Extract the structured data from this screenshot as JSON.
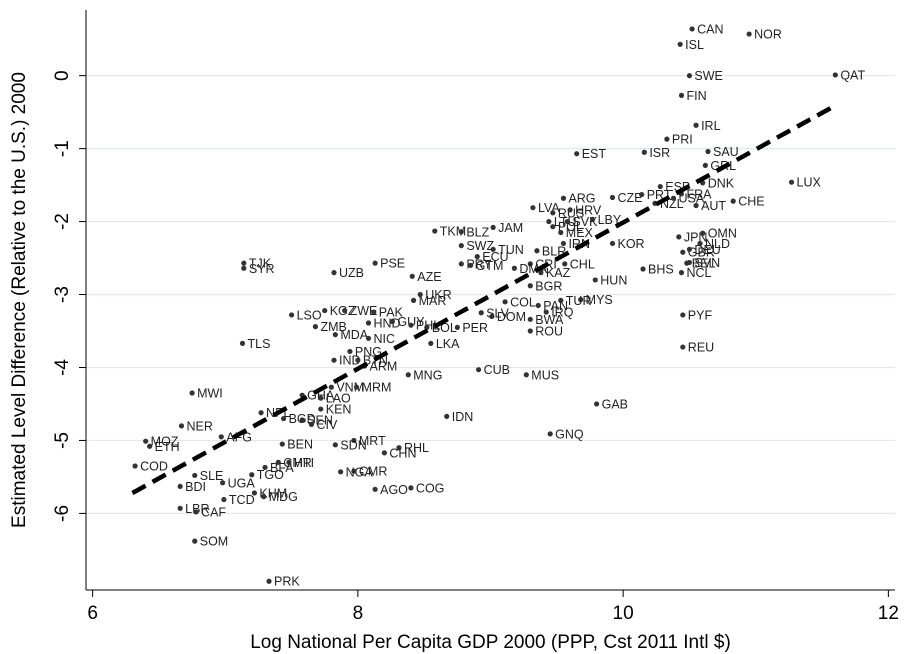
{
  "chart_data": {
    "type": "scatter",
    "title": "",
    "xlabel": "Log National Per Capita GDP 2000 (PPP, Cst 2011 Intl $)",
    "ylabel": "Estimated Level Difference (Relative to the U.S.) 2000",
    "xlim": [
      5.95,
      12.05
    ],
    "ylim": [
      -7.05,
      0.9
    ],
    "xticks": [
      6,
      8,
      10,
      12
    ],
    "yticks": [
      0,
      -1,
      -2,
      -3,
      -4,
      -5,
      -6
    ],
    "grid": "horizontal",
    "legend": "none",
    "colors": {
      "points": "#333333",
      "fit_line": "#000000",
      "grid": "#dfeaf0",
      "axis": "#000000"
    },
    "fit_line": {
      "style": "dashed",
      "x": [
        6.3,
        11.6
      ],
      "y": [
        -5.72,
        -0.41
      ]
    },
    "points": [
      {
        "label": "CAN",
        "x": 10.52,
        "y": 0.64
      },
      {
        "label": "NOR",
        "x": 10.95,
        "y": 0.57
      },
      {
        "label": "ISL",
        "x": 10.43,
        "y": 0.43
      },
      {
        "label": "SWE",
        "x": 10.5,
        "y": 0.0
      },
      {
        "label": "QAT",
        "x": 11.6,
        "y": 0.01
      },
      {
        "label": "FIN",
        "x": 10.44,
        "y": -0.27
      },
      {
        "label": "IRL",
        "x": 10.55,
        "y": -0.68
      },
      {
        "label": "PRI",
        "x": 10.33,
        "y": -0.87
      },
      {
        "label": "EST",
        "x": 9.65,
        "y": -1.07
      },
      {
        "label": "ISR",
        "x": 10.16,
        "y": -1.05
      },
      {
        "label": "SAU",
        "x": 10.64,
        "y": -1.04
      },
      {
        "label": "GRL",
        "x": 10.62,
        "y": -1.23
      },
      {
        "label": "DNK",
        "x": 10.6,
        "y": -1.47
      },
      {
        "label": "LUX",
        "x": 11.27,
        "y": -1.46
      },
      {
        "label": "ESP",
        "x": 10.28,
        "y": -1.52
      },
      {
        "label": "FRA",
        "x": 10.44,
        "y": -1.62
      },
      {
        "label": "CHE",
        "x": 10.83,
        "y": -1.72
      },
      {
        "label": "AUT",
        "x": 10.55,
        "y": -1.78
      },
      {
        "label": "ARG",
        "x": 9.55,
        "y": -1.68
      },
      {
        "label": "CZE",
        "x": 9.92,
        "y": -1.67
      },
      {
        "label": "PRT",
        "x": 10.14,
        "y": -1.63
      },
      {
        "label": "NZL",
        "x": 10.24,
        "y": -1.75
      },
      {
        "label": "USA",
        "x": 10.38,
        "y": -1.68
      },
      {
        "label": "LVA",
        "x": 9.32,
        "y": -1.81
      },
      {
        "label": "RUS",
        "x": 9.47,
        "y": -1.88
      },
      {
        "label": "HRV",
        "x": 9.6,
        "y": -1.84
      },
      {
        "label": "LTU",
        "x": 9.44,
        "y": -2.0
      },
      {
        "label": "SVK",
        "x": 9.58,
        "y": -2.0
      },
      {
        "label": "POL",
        "x": 9.47,
        "y": -2.07
      },
      {
        "label": "LBY",
        "x": 9.77,
        "y": -1.97
      },
      {
        "label": "TKM",
        "x": 8.58,
        "y": -2.13
      },
      {
        "label": "BLZ",
        "x": 8.78,
        "y": -2.14
      },
      {
        "label": "JAM",
        "x": 9.02,
        "y": -2.08
      },
      {
        "label": "MEX",
        "x": 9.53,
        "y": -2.15
      },
      {
        "label": "IRN",
        "x": 9.55,
        "y": -2.3
      },
      {
        "label": "KOR",
        "x": 9.92,
        "y": -2.3
      },
      {
        "label": "JPN",
        "x": 10.42,
        "y": -2.21
      },
      {
        "label": "OMN",
        "x": 10.6,
        "y": -2.16
      },
      {
        "label": "NLD",
        "x": 10.58,
        "y": -2.3
      },
      {
        "label": "GBR",
        "x": 10.45,
        "y": -2.42
      },
      {
        "label": "DEU",
        "x": 10.5,
        "y": -2.38
      },
      {
        "label": "BEL",
        "x": 10.48,
        "y": -2.57
      },
      {
        "label": "SVN",
        "x": 10.5,
        "y": -2.56
      },
      {
        "label": "NCL",
        "x": 10.44,
        "y": -2.7
      },
      {
        "label": "BHS",
        "x": 10.15,
        "y": -2.65
      },
      {
        "label": "TJK",
        "x": 7.14,
        "y": -2.57
      },
      {
        "label": "SYR",
        "x": 7.14,
        "y": -2.64
      },
      {
        "label": "PSE",
        "x": 8.13,
        "y": -2.57
      },
      {
        "label": "UZB",
        "x": 7.82,
        "y": -2.7
      },
      {
        "label": "SWZ",
        "x": 8.78,
        "y": -2.33
      },
      {
        "label": "TUN",
        "x": 9.02,
        "y": -2.38
      },
      {
        "label": "BLR",
        "x": 9.35,
        "y": -2.4
      },
      {
        "label": "ECU",
        "x": 8.9,
        "y": -2.48
      },
      {
        "label": "CRI",
        "x": 9.3,
        "y": -2.58
      },
      {
        "label": "CHL",
        "x": 9.56,
        "y": -2.58
      },
      {
        "label": "PRY",
        "x": 8.78,
        "y": -2.58
      },
      {
        "label": "GTM",
        "x": 8.85,
        "y": -2.6
      },
      {
        "label": "DMA",
        "x": 9.18,
        "y": -2.64
      },
      {
        "label": "KAZ",
        "x": 9.38,
        "y": -2.7
      },
      {
        "label": "AZE",
        "x": 8.41,
        "y": -2.75
      },
      {
        "label": "HUN",
        "x": 9.79,
        "y": -2.8
      },
      {
        "label": "BGR",
        "x": 9.3,
        "y": -2.88
      },
      {
        "label": "UKR",
        "x": 8.47,
        "y": -3.0
      },
      {
        "label": "MAR",
        "x": 8.42,
        "y": -3.08
      },
      {
        "label": "MYS",
        "x": 9.68,
        "y": -3.07
      },
      {
        "label": "TUR",
        "x": 9.53,
        "y": -3.08
      },
      {
        "label": "COL",
        "x": 9.11,
        "y": -3.1
      },
      {
        "label": "PAN",
        "x": 9.36,
        "y": -3.15
      },
      {
        "label": "KGZ",
        "x": 7.75,
        "y": -3.22
      },
      {
        "label": "ZWE",
        "x": 7.9,
        "y": -3.22
      },
      {
        "label": "PAK",
        "x": 8.12,
        "y": -3.24
      },
      {
        "label": "IRQ",
        "x": 9.42,
        "y": -3.24
      },
      {
        "label": "DOM",
        "x": 9.01,
        "y": -3.3
      },
      {
        "label": "LSO",
        "x": 7.5,
        "y": -3.28
      },
      {
        "label": "BWA",
        "x": 9.3,
        "y": -3.34
      },
      {
        "label": "SLV",
        "x": 8.93,
        "y": -3.25
      },
      {
        "label": "HND",
        "x": 8.08,
        "y": -3.39
      },
      {
        "label": "GUY",
        "x": 8.26,
        "y": -3.37
      },
      {
        "label": "PHL",
        "x": 8.4,
        "y": -3.42
      },
      {
        "label": "BOL",
        "x": 8.52,
        "y": -3.45
      },
      {
        "label": "PER",
        "x": 8.75,
        "y": -3.45
      },
      {
        "label": "ROU",
        "x": 9.3,
        "y": -3.5
      },
      {
        "label": "ZMB",
        "x": 7.68,
        "y": -3.44
      },
      {
        "label": "MDA",
        "x": 7.83,
        "y": -3.55
      },
      {
        "label": "NIC",
        "x": 8.08,
        "y": -3.6
      },
      {
        "label": "TLS",
        "x": 7.13,
        "y": -3.67
      },
      {
        "label": "LKA",
        "x": 8.55,
        "y": -3.67
      },
      {
        "label": "PYF",
        "x": 10.45,
        "y": -3.28
      },
      {
        "label": "REU",
        "x": 10.45,
        "y": -3.72
      },
      {
        "label": "PNG",
        "x": 7.94,
        "y": -3.78
      },
      {
        "label": "IND",
        "x": 7.82,
        "y": -3.9
      },
      {
        "label": "BTN",
        "x": 8.0,
        "y": -3.9
      },
      {
        "label": "ARM",
        "x": 8.05,
        "y": -3.98
      },
      {
        "label": "CUB",
        "x": 8.91,
        "y": -4.03
      },
      {
        "label": "MUS",
        "x": 9.27,
        "y": -4.1
      },
      {
        "label": "MNG",
        "x": 8.38,
        "y": -4.1
      },
      {
        "label": "VNM",
        "x": 7.8,
        "y": -4.27
      },
      {
        "label": "MRM",
        "x": 7.99,
        "y": -4.27
      },
      {
        "label": "MWI",
        "x": 6.75,
        "y": -4.35
      },
      {
        "label": "GHA",
        "x": 7.58,
        "y": -4.38
      },
      {
        "label": "LAO",
        "x": 7.72,
        "y": -4.42
      },
      {
        "label": "GAB",
        "x": 9.8,
        "y": -4.5
      },
      {
        "label": "KEN",
        "x": 7.72,
        "y": -4.57
      },
      {
        "label": "NPL",
        "x": 7.27,
        "y": -4.62
      },
      {
        "label": "BGD",
        "x": 7.44,
        "y": -4.7
      },
      {
        "label": "SEN",
        "x": 7.58,
        "y": -4.72
      },
      {
        "label": "IDN",
        "x": 8.67,
        "y": -4.67
      },
      {
        "label": "CIV",
        "x": 7.65,
        "y": -4.78
      },
      {
        "label": "NER",
        "x": 6.67,
        "y": -4.8
      },
      {
        "label": "GNQ",
        "x": 9.45,
        "y": -4.91
      },
      {
        "label": "AFG",
        "x": 6.97,
        "y": -4.95
      },
      {
        "label": "MOZ",
        "x": 6.4,
        "y": -5.01
      },
      {
        "label": "MRT",
        "x": 7.97,
        "y": -5.0
      },
      {
        "label": "ETH",
        "x": 6.43,
        "y": -5.08
      },
      {
        "label": "BEN",
        "x": 7.43,
        "y": -5.05
      },
      {
        "label": "SDN",
        "x": 7.83,
        "y": -5.06
      },
      {
        "label": "RHL",
        "x": 8.31,
        "y": -5.1
      },
      {
        "label": "CHN",
        "x": 8.2,
        "y": -5.17
      },
      {
        "label": "COD",
        "x": 6.32,
        "y": -5.35
      },
      {
        "label": "CMR",
        "x": 7.4,
        "y": -5.3
      },
      {
        "label": "HTI",
        "x": 7.48,
        "y": -5.3
      },
      {
        "label": "BFA",
        "x": 7.3,
        "y": -5.37
      },
      {
        "label": "CMR",
        "x": 7.97,
        "y": -5.42
      },
      {
        "label": "NGA",
        "x": 7.87,
        "y": -5.43
      },
      {
        "label": "SLE",
        "x": 6.77,
        "y": -5.48
      },
      {
        "label": "TGO",
        "x": 7.2,
        "y": -5.47
      },
      {
        "label": "UGA",
        "x": 6.98,
        "y": -5.58
      },
      {
        "label": "BDI",
        "x": 6.66,
        "y": -5.63
      },
      {
        "label": "COG",
        "x": 8.4,
        "y": -5.65
      },
      {
        "label": "AGO",
        "x": 8.13,
        "y": -5.67
      },
      {
        "label": "KHM",
        "x": 7.22,
        "y": -5.72
      },
      {
        "label": "MDG",
        "x": 7.29,
        "y": -5.77
      },
      {
        "label": "TCD",
        "x": 6.99,
        "y": -5.81
      },
      {
        "label": "LBR",
        "x": 6.66,
        "y": -5.93
      },
      {
        "label": "CAF",
        "x": 6.78,
        "y": -5.98
      },
      {
        "label": "SOM",
        "x": 6.77,
        "y": -6.38
      },
      {
        "label": "PRK",
        "x": 7.33,
        "y": -6.93
      }
    ]
  }
}
